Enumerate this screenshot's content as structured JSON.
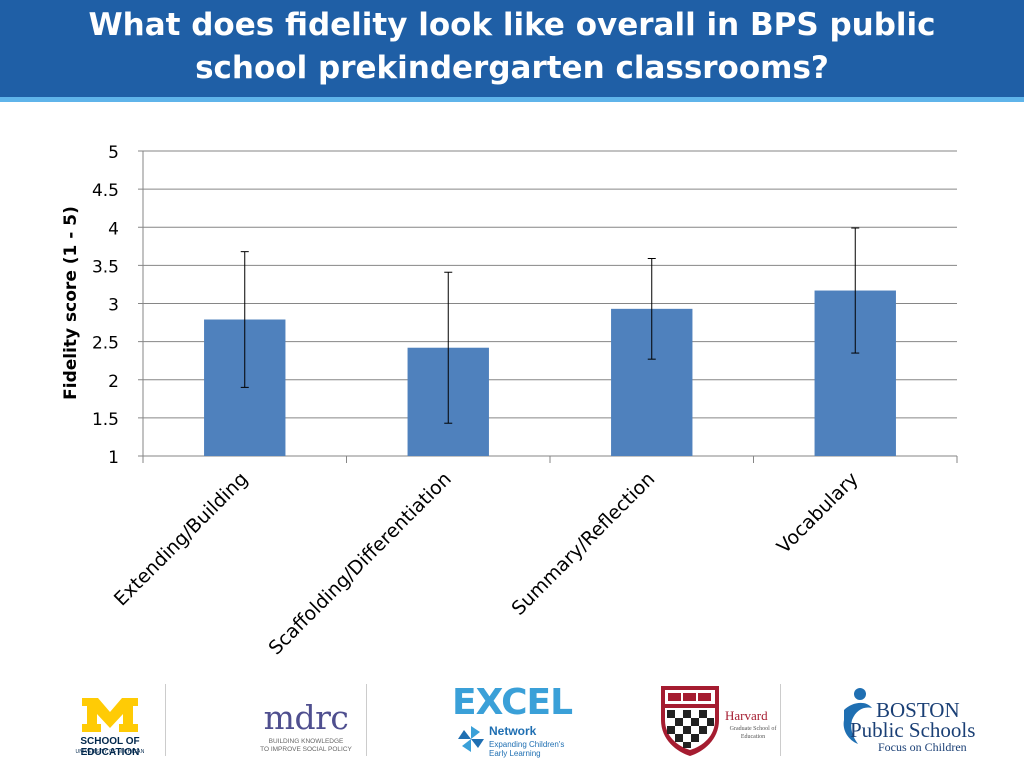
{
  "slide": {
    "title_line1": "What does fidelity look like overall in BPS public",
    "title_line2": "school prekindergarten classrooms?"
  },
  "chart_data": {
    "type": "bar",
    "title": "",
    "xlabel": "",
    "ylabel": "Fidelity score (1 - 5)",
    "ylim": [
      1,
      5
    ],
    "yticks": [
      "1",
      "1.5",
      "2",
      "2.5",
      "3",
      "3.5",
      "4",
      "4.5",
      "5"
    ],
    "grid": true,
    "categories": [
      "Extending/Building",
      "Scaffolding/Differentiation",
      "Summary/Reflection",
      "Vocabulary"
    ],
    "values": [
      2.79,
      2.42,
      2.93,
      3.17
    ],
    "error_low": [
      1.9,
      1.43,
      2.27,
      2.35
    ],
    "error_high": [
      3.68,
      3.41,
      3.59,
      3.99
    ],
    "bar_color": "#4f81bd"
  },
  "logos": {
    "umich": {
      "school": "SCHOOL OF EDUCATION",
      "university": "UNIVERSITY OF MICHIGAN"
    },
    "mdrc": {
      "word": "mdrc",
      "tagline1": "BUILDING KNOWLEDGE",
      "tagline2": "TO IMPROVE SOCIAL POLICY"
    },
    "excel": {
      "word": "EXCEL",
      "network": "Network",
      "tagline1": "Expanding Children's",
      "tagline2": "Early Learning"
    },
    "harvard": {
      "name": "Harvard",
      "school": "Graduate School of Education"
    },
    "bps": {
      "line1": "BOSTON",
      "line2": "Public Schools",
      "line3": "Focus on Children"
    }
  },
  "colors": {
    "header": "#1f5fa6",
    "header_stripe": "#5fb4ea",
    "bar": "#4f81bd"
  }
}
